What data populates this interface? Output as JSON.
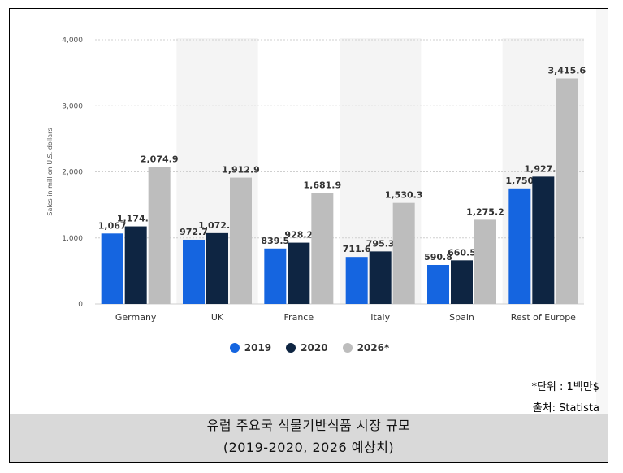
{
  "chart_data": {
    "type": "bar",
    "categories": [
      "Germany",
      "UK",
      "France",
      "Italy",
      "Spain",
      "Rest of Europe"
    ],
    "series": [
      {
        "name": "2019",
        "color": "#1565e0",
        "values": [
          1067,
          972.7,
          839.5,
          711.6,
          590.8,
          1750
        ],
        "labels": [
          "1,067",
          "972.7",
          "839.5",
          "711.6",
          "590.8",
          "1,750"
        ]
      },
      {
        "name": "2020",
        "color": "#0e2542",
        "values": [
          1174.7,
          1072.6,
          928.2,
          795.3,
          660.5,
          1927.6
        ],
        "labels": [
          "1,174.7",
          "1,072.6",
          "928.2",
          "795.3",
          "660.5",
          "1,927.6"
        ]
      },
      {
        "name": "2026*",
        "color": "#bdbdbd",
        "values": [
          2074.9,
          1912.9,
          1681.9,
          1530.3,
          1275.2,
          3415.6
        ],
        "labels": [
          "2,074.9",
          "1,912.9",
          "1,681.9",
          "1,530.3",
          "1,275.2",
          "3,415.6"
        ]
      }
    ],
    "ylabel": "Sales in million U.S. dollars",
    "ylim": [
      0,
      4000
    ],
    "yticks": [
      0,
      1000,
      2000,
      3000,
      4000
    ],
    "ytick_labels": [
      "0",
      "1,000",
      "2,000",
      "3,000",
      "4,000"
    ],
    "grid": true,
    "legend": "bottom-center"
  },
  "notes": {
    "unit": "*단위 : 1백만$",
    "source": "출처: Statista"
  },
  "caption": {
    "line1": "유럽 주요국 식물기반식품 시장 규모",
    "line2": "(2019-2020, 2026 예상치)"
  }
}
